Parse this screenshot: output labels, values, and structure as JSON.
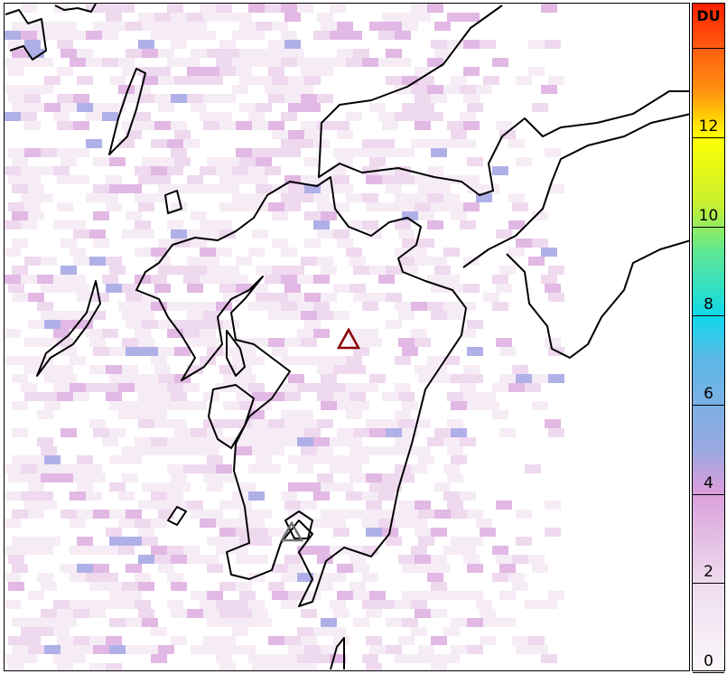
{
  "colorbar": {
    "unit": "DU",
    "min": 0,
    "max": 15,
    "ticks": [
      0,
      2,
      4,
      6,
      8,
      10,
      12,
      14
    ],
    "tick_labels": [
      "0",
      "2",
      "4",
      "6",
      "8",
      "10",
      "12",
      ""
    ],
    "colors": [
      "#fbf7fb",
      "#d99edc",
      "#9aa8e0",
      "#10d8ec",
      "#60e890",
      "#ffff00",
      "#ff9010",
      "#ff2000"
    ]
  },
  "markers": [
    {
      "name": "volcano-1",
      "color": "#8b0000"
    },
    {
      "name": "volcano-2",
      "color": "#707070"
    }
  ]
}
